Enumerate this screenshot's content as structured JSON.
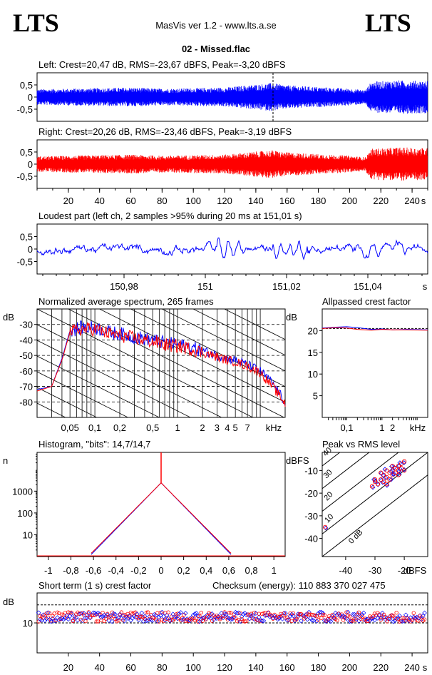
{
  "header": {
    "logo_left": "LTS",
    "logo_right": "LTS",
    "app_title": "MasVis ver 1.2 - www.lts.a.se",
    "file_title": "02 - Missed.flac"
  },
  "colors": {
    "left": "#0000ff",
    "right": "#ff0000",
    "grid": "#000000"
  },
  "chart_data": [
    {
      "id": "left",
      "type": "line",
      "title": "Left: Crest=20,47 dB, RMS=-23,67 dBFS, Peak=-3,20 dBFS",
      "yticks": [
        "0,5",
        "0",
        "-0,5"
      ],
      "ylim": [
        -1,
        1
      ],
      "xlim": [
        0,
        250
      ],
      "marker_x": 151,
      "envelope_x": [
        0,
        20,
        40,
        60,
        80,
        100,
        120,
        140,
        150,
        160,
        180,
        200,
        210,
        214,
        230,
        250
      ],
      "envelope": [
        0.28,
        0.3,
        0.32,
        0.34,
        0.3,
        0.32,
        0.34,
        0.45,
        0.5,
        0.42,
        0.36,
        0.3,
        0.25,
        0.55,
        0.6,
        0.58
      ]
    },
    {
      "id": "right",
      "type": "line",
      "title": "Right: Crest=20,26 dB, RMS=-23,46 dBFS, Peak=-3,19 dBFS",
      "yticks": [
        "0,5",
        "0",
        "-0,5"
      ],
      "ylim": [
        -1,
        1
      ],
      "xlim": [
        0,
        250
      ],
      "xticks": [
        "20",
        "40",
        "60",
        "80",
        "100",
        "120",
        "140",
        "160",
        "180",
        "200",
        "220",
        "240",
        "s"
      ],
      "envelope_x": [
        0,
        20,
        40,
        60,
        80,
        100,
        120,
        140,
        150,
        160,
        180,
        200,
        210,
        214,
        230,
        250
      ],
      "envelope": [
        0.28,
        0.3,
        0.32,
        0.34,
        0.3,
        0.32,
        0.34,
        0.45,
        0.5,
        0.42,
        0.36,
        0.3,
        0.25,
        0.55,
        0.6,
        0.58
      ]
    },
    {
      "id": "loudest",
      "type": "line",
      "title": "Loudest part (left  ch, 2 samples >95% during 20 ms at 151,01 s)",
      "yticks": [
        "0,5",
        "0",
        "-0,5"
      ],
      "ylim": [
        -1,
        1
      ],
      "xticks": [
        "150,98",
        "151",
        "151,02",
        "151,04",
        "s"
      ]
    },
    {
      "id": "spectrum",
      "type": "line",
      "title": "Normalized average spectrum, 265 frames",
      "ylabel": "dB",
      "yticks": [
        "-30",
        "-40",
        "-50",
        "-60",
        "-70",
        "-80"
      ],
      "ylim": [
        -90,
        -20
      ],
      "xticks": [
        "0,05",
        "0,1",
        "0,2",
        "0,5",
        "1",
        "2",
        "3",
        "4",
        "5",
        "7",
        "kHz"
      ],
      "x": [
        0.02,
        0.03,
        0.04,
        0.05,
        0.07,
        0.1,
        0.15,
        0.2,
        0.3,
        0.5,
        0.7,
        1,
        1.5,
        2,
        3,
        4,
        5,
        7,
        10,
        14,
        20
      ],
      "series": [
        {
          "values": [
            -72,
            -70,
            -52,
            -34,
            -32,
            -32,
            -35,
            -36,
            -38,
            -40,
            -42,
            -43,
            -45,
            -47,
            -50,
            -52,
            -53,
            -56,
            -60,
            -68,
            -80
          ]
        },
        {
          "values": [
            -73,
            -70,
            -53,
            -35,
            -33,
            -33,
            -36,
            -37,
            -39,
            -41,
            -43,
            -44,
            -46,
            -48,
            -51,
            -53,
            -54,
            -57,
            -61,
            -70,
            -81
          ]
        }
      ]
    },
    {
      "id": "allpassed",
      "type": "line",
      "title": "Allpassed crest factor",
      "ylabel": "dB",
      "yticks": [
        "20",
        "15",
        "10",
        "5"
      ],
      "ylim": [
        0,
        25
      ],
      "xticks": [
        "0,1",
        "1",
        "2",
        "kHz"
      ],
      "x": [
        0.02,
        0.05,
        0.1,
        0.2,
        0.5,
        1,
        2,
        5,
        20
      ],
      "series": [
        {
          "values": [
            20.6,
            20.8,
            20.9,
            20.7,
            20.3,
            20.4,
            20.2,
            20.3,
            20.2
          ]
        },
        {
          "values": [
            20.5,
            20.7,
            20.6,
            20.3,
            20.1,
            20.3,
            20.2,
            20.2,
            20.1
          ]
        }
      ]
    },
    {
      "id": "histogram",
      "type": "line",
      "title": "Histogram, \"bits\": 14,7/14,7",
      "ylabel": "n",
      "yticks": [
        "1000",
        "100",
        "10"
      ],
      "xticks": [
        "-1",
        "-0,8",
        "-0,6",
        "-0,4",
        "-0,2",
        "0",
        "0,2",
        "0,4",
        "0,6",
        "0,8",
        "1"
      ],
      "xlim": [
        -1.1,
        1.1
      ],
      "peak_value": 2400
    },
    {
      "id": "peakrms",
      "type": "scatter",
      "title": "Peak vs RMS level",
      "ylabel": "dBFS",
      "xlabel": "dBFS",
      "yticks": [
        "-10",
        "-20",
        "-30",
        "-40"
      ],
      "xticks": [
        "-40",
        "-30",
        "-20",
        "dBFS"
      ],
      "diagonal_labels": [
        "40",
        "30",
        "20",
        "10",
        "0 dB"
      ],
      "xlim": [
        -48,
        -12
      ],
      "ylim": [
        -48,
        -2
      ],
      "points": [
        [
          -28,
          -14
        ],
        [
          -27,
          -12
        ],
        [
          -26,
          -13
        ],
        [
          -25,
          -11
        ],
        [
          -24,
          -10
        ],
        [
          -23,
          -9
        ],
        [
          -22,
          -8
        ],
        [
          -21,
          -7
        ],
        [
          -20,
          -6
        ],
        [
          -29,
          -16
        ],
        [
          -30,
          -15
        ],
        [
          -31,
          -17
        ],
        [
          -27,
          -15
        ],
        [
          -26,
          -16
        ],
        [
          -25,
          -14
        ],
        [
          -24,
          -12
        ],
        [
          -23,
          -11
        ],
        [
          -22,
          -12
        ],
        [
          -21,
          -9
        ],
        [
          -20,
          -10
        ],
        [
          -28,
          -11
        ],
        [
          -26,
          -10
        ],
        [
          -24,
          -8
        ],
        [
          -30,
          -14
        ],
        [
          -22,
          -10
        ],
        [
          -47,
          -35
        ]
      ]
    },
    {
      "id": "shortterm",
      "type": "scatter",
      "title": "Short term (1 s) crest factor",
      "checksum": "Checksum (energy):   110 883 370 027 475",
      "ylabel": "dB",
      "yticks": [
        "10"
      ],
      "ylim": [
        0,
        20
      ],
      "xlim": [
        0,
        250
      ],
      "xticks": [
        "20",
        "40",
        "60",
        "80",
        "100",
        "120",
        "140",
        "160",
        "180",
        "200",
        "220",
        "240",
        "s"
      ],
      "mean": 12
    }
  ]
}
